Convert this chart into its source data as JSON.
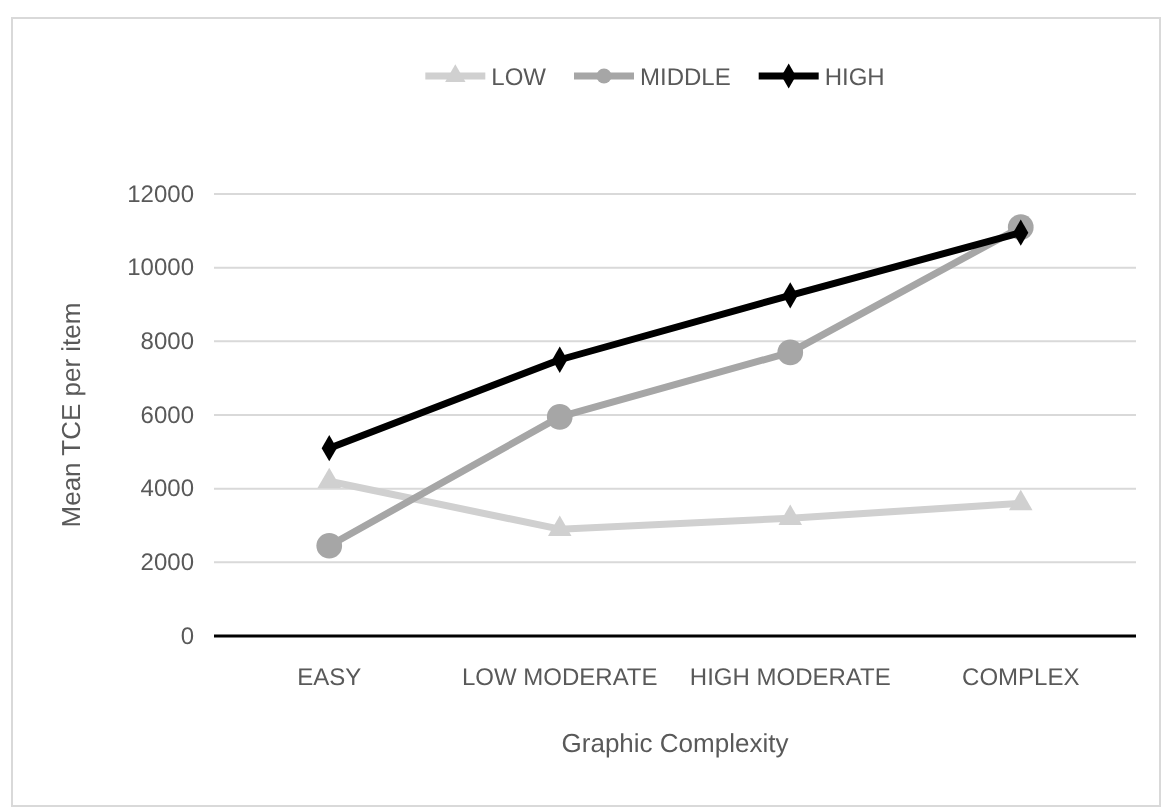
{
  "chart_data": {
    "type": "line",
    "xlabel": "Graphic Complexity",
    "ylabel": "Mean TCE per item",
    "categories": [
      "EASY",
      "LOW MODERATE",
      "HIGH MODERATE",
      "COMPLEX"
    ],
    "series": [
      {
        "name": "LOW",
        "color": "#d0d0d0",
        "marker": "triangle",
        "values": [
          4200,
          2900,
          3200,
          3600
        ]
      },
      {
        "name": "MIDDLE",
        "color": "#a6a6a6",
        "marker": "circle",
        "values": [
          2450,
          5950,
          7700,
          11100
        ]
      },
      {
        "name": "HIGH",
        "color": "#000000",
        "marker": "diamond",
        "values": [
          5100,
          7500,
          9250,
          10950
        ]
      }
    ],
    "ylim": [
      0,
      12000
    ],
    "yticks": [
      0,
      2000,
      4000,
      6000,
      8000,
      10000,
      12000
    ],
    "grid": "y",
    "legend": "top",
    "line_style": "solid"
  }
}
